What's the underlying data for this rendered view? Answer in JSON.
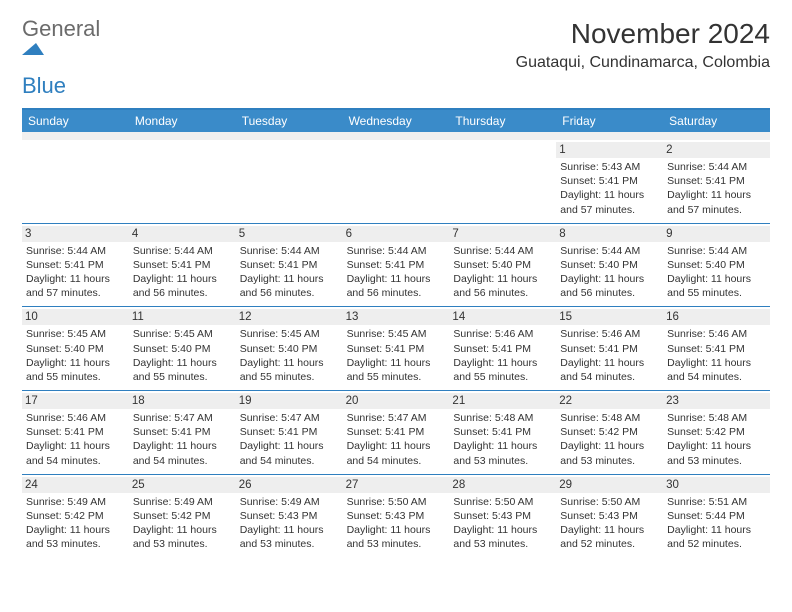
{
  "brand": {
    "word1": "General",
    "word2": "Blue",
    "word1_color": "#6b6b6b",
    "word2_color": "#2f7fbf",
    "mark_color": "#2f7fbf"
  },
  "title": "November 2024",
  "location": "Guataqui, Cundinamarca, Colombia",
  "colors": {
    "header_bg": "#3a8bc9",
    "rule": "#2f7fbf",
    "daynum_bg": "#eeeeee",
    "spacer_bg": "#f0f0f0",
    "text": "#333333",
    "background": "#ffffff"
  },
  "weekdays": [
    "Sunday",
    "Monday",
    "Tuesday",
    "Wednesday",
    "Thursday",
    "Friday",
    "Saturday"
  ],
  "weeks": [
    [
      {
        "n": "",
        "sr": "",
        "ss": "",
        "dl": ""
      },
      {
        "n": "",
        "sr": "",
        "ss": "",
        "dl": ""
      },
      {
        "n": "",
        "sr": "",
        "ss": "",
        "dl": ""
      },
      {
        "n": "",
        "sr": "",
        "ss": "",
        "dl": ""
      },
      {
        "n": "",
        "sr": "",
        "ss": "",
        "dl": ""
      },
      {
        "n": "1",
        "sr": "Sunrise: 5:43 AM",
        "ss": "Sunset: 5:41 PM",
        "dl": "Daylight: 11 hours and 57 minutes."
      },
      {
        "n": "2",
        "sr": "Sunrise: 5:44 AM",
        "ss": "Sunset: 5:41 PM",
        "dl": "Daylight: 11 hours and 57 minutes."
      }
    ],
    [
      {
        "n": "3",
        "sr": "Sunrise: 5:44 AM",
        "ss": "Sunset: 5:41 PM",
        "dl": "Daylight: 11 hours and 57 minutes."
      },
      {
        "n": "4",
        "sr": "Sunrise: 5:44 AM",
        "ss": "Sunset: 5:41 PM",
        "dl": "Daylight: 11 hours and 56 minutes."
      },
      {
        "n": "5",
        "sr": "Sunrise: 5:44 AM",
        "ss": "Sunset: 5:41 PM",
        "dl": "Daylight: 11 hours and 56 minutes."
      },
      {
        "n": "6",
        "sr": "Sunrise: 5:44 AM",
        "ss": "Sunset: 5:41 PM",
        "dl": "Daylight: 11 hours and 56 minutes."
      },
      {
        "n": "7",
        "sr": "Sunrise: 5:44 AM",
        "ss": "Sunset: 5:40 PM",
        "dl": "Daylight: 11 hours and 56 minutes."
      },
      {
        "n": "8",
        "sr": "Sunrise: 5:44 AM",
        "ss": "Sunset: 5:40 PM",
        "dl": "Daylight: 11 hours and 56 minutes."
      },
      {
        "n": "9",
        "sr": "Sunrise: 5:44 AM",
        "ss": "Sunset: 5:40 PM",
        "dl": "Daylight: 11 hours and 55 minutes."
      }
    ],
    [
      {
        "n": "10",
        "sr": "Sunrise: 5:45 AM",
        "ss": "Sunset: 5:40 PM",
        "dl": "Daylight: 11 hours and 55 minutes."
      },
      {
        "n": "11",
        "sr": "Sunrise: 5:45 AM",
        "ss": "Sunset: 5:40 PM",
        "dl": "Daylight: 11 hours and 55 minutes."
      },
      {
        "n": "12",
        "sr": "Sunrise: 5:45 AM",
        "ss": "Sunset: 5:40 PM",
        "dl": "Daylight: 11 hours and 55 minutes."
      },
      {
        "n": "13",
        "sr": "Sunrise: 5:45 AM",
        "ss": "Sunset: 5:41 PM",
        "dl": "Daylight: 11 hours and 55 minutes."
      },
      {
        "n": "14",
        "sr": "Sunrise: 5:46 AM",
        "ss": "Sunset: 5:41 PM",
        "dl": "Daylight: 11 hours and 55 minutes."
      },
      {
        "n": "15",
        "sr": "Sunrise: 5:46 AM",
        "ss": "Sunset: 5:41 PM",
        "dl": "Daylight: 11 hours and 54 minutes."
      },
      {
        "n": "16",
        "sr": "Sunrise: 5:46 AM",
        "ss": "Sunset: 5:41 PM",
        "dl": "Daylight: 11 hours and 54 minutes."
      }
    ],
    [
      {
        "n": "17",
        "sr": "Sunrise: 5:46 AM",
        "ss": "Sunset: 5:41 PM",
        "dl": "Daylight: 11 hours and 54 minutes."
      },
      {
        "n": "18",
        "sr": "Sunrise: 5:47 AM",
        "ss": "Sunset: 5:41 PM",
        "dl": "Daylight: 11 hours and 54 minutes."
      },
      {
        "n": "19",
        "sr": "Sunrise: 5:47 AM",
        "ss": "Sunset: 5:41 PM",
        "dl": "Daylight: 11 hours and 54 minutes."
      },
      {
        "n": "20",
        "sr": "Sunrise: 5:47 AM",
        "ss": "Sunset: 5:41 PM",
        "dl": "Daylight: 11 hours and 54 minutes."
      },
      {
        "n": "21",
        "sr": "Sunrise: 5:48 AM",
        "ss": "Sunset: 5:41 PM",
        "dl": "Daylight: 11 hours and 53 minutes."
      },
      {
        "n": "22",
        "sr": "Sunrise: 5:48 AM",
        "ss": "Sunset: 5:42 PM",
        "dl": "Daylight: 11 hours and 53 minutes."
      },
      {
        "n": "23",
        "sr": "Sunrise: 5:48 AM",
        "ss": "Sunset: 5:42 PM",
        "dl": "Daylight: 11 hours and 53 minutes."
      }
    ],
    [
      {
        "n": "24",
        "sr": "Sunrise: 5:49 AM",
        "ss": "Sunset: 5:42 PM",
        "dl": "Daylight: 11 hours and 53 minutes."
      },
      {
        "n": "25",
        "sr": "Sunrise: 5:49 AM",
        "ss": "Sunset: 5:42 PM",
        "dl": "Daylight: 11 hours and 53 minutes."
      },
      {
        "n": "26",
        "sr": "Sunrise: 5:49 AM",
        "ss": "Sunset: 5:43 PM",
        "dl": "Daylight: 11 hours and 53 minutes."
      },
      {
        "n": "27",
        "sr": "Sunrise: 5:50 AM",
        "ss": "Sunset: 5:43 PM",
        "dl": "Daylight: 11 hours and 53 minutes."
      },
      {
        "n": "28",
        "sr": "Sunrise: 5:50 AM",
        "ss": "Sunset: 5:43 PM",
        "dl": "Daylight: 11 hours and 53 minutes."
      },
      {
        "n": "29",
        "sr": "Sunrise: 5:50 AM",
        "ss": "Sunset: 5:43 PM",
        "dl": "Daylight: 11 hours and 52 minutes."
      },
      {
        "n": "30",
        "sr": "Sunrise: 5:51 AM",
        "ss": "Sunset: 5:44 PM",
        "dl": "Daylight: 11 hours and 52 minutes."
      }
    ]
  ]
}
